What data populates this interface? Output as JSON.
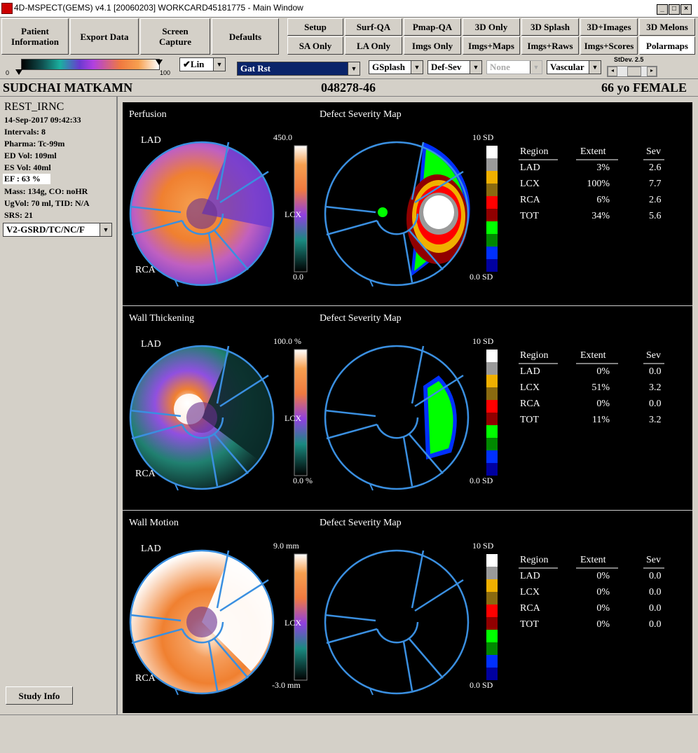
{
  "window": {
    "title": "4D-MSPECT(GEMS) v4.1 [20060203] WORKCARD45181775 - Main Window"
  },
  "toolbar": {
    "left_buttons": [
      "Patient\nInformation",
      "Export Data",
      "Screen\nCapture",
      "Defaults"
    ],
    "row1": [
      "Setup",
      "Surf-QA",
      "Pmap-QA",
      "3D Only",
      "3D Splash",
      "3D+Images",
      "3D Melons"
    ],
    "row2": [
      "SA Only",
      "LA Only",
      "Imgs Only",
      "Imgs+Maps",
      "Imgs+Raws",
      "Imgs+Scores",
      "Polarmaps"
    ],
    "active": "Polarmaps"
  },
  "controls": {
    "scale_min": "0",
    "scale_max": "100",
    "lin": "✔Lin",
    "dataset": "Gat Rst",
    "splash": "GSplash",
    "defsev": "Def-Sev",
    "none": "None",
    "vascular": "Vascular",
    "stdev_label": "StDev. 2.5"
  },
  "patient": {
    "name": "SUDCHAI MATKAMN",
    "id": "048278-46",
    "age_sex": "66 yo FEMALE"
  },
  "study": {
    "type": "REST_IRNC",
    "date": "14-Sep-2017 09:42:33",
    "intervals": "Intervals: 8",
    "pharma": "Pharma: Tc-99m",
    "ed": "ED Vol:   109ml",
    "es": "ES Vol:    40ml",
    "ef": "EF   : 63 %",
    "mass": "Mass: 134g, CO: noHR",
    "ugvol": "UgVol:    70 ml,   TID: N/A",
    "srs": "SRS: 21",
    "protocol": "V2-GSRD/TC/NC/F",
    "study_info": "Study Info"
  },
  "panels": [
    {
      "title": "Perfusion",
      "defect_title": "Defect Severity Map",
      "scale_max": "450.0",
      "scale_min": "0.0",
      "scale_mid": "LCX",
      "sd_max": "10 SD",
      "sd_min": "0.0 SD",
      "lad": "LAD",
      "rca": "RCA",
      "headers": [
        "Region",
        "Extent",
        "Sev"
      ],
      "rows": [
        [
          "LAD",
          "3%",
          "2.6"
        ],
        [
          "LCX",
          "100%",
          "7.7"
        ],
        [
          "RCA",
          "6%",
          "2.6"
        ],
        [
          "TOT",
          "34%",
          "5.6"
        ]
      ]
    },
    {
      "title": "Wall Thickening",
      "defect_title": "Defect Severity Map",
      "scale_max": "100.0 %",
      "scale_min": "0.0 %",
      "scale_mid": "LCX",
      "sd_max": "10 SD",
      "sd_min": "0.0 SD",
      "lad": "LAD",
      "rca": "RCA",
      "headers": [
        "Region",
        "Extent",
        "Sev"
      ],
      "rows": [
        [
          "LAD",
          "0%",
          "0.0"
        ],
        [
          "LCX",
          "51%",
          "3.2"
        ],
        [
          "RCA",
          "0%",
          "0.0"
        ],
        [
          "TOT",
          "11%",
          "3.2"
        ]
      ]
    },
    {
      "title": "Wall Motion",
      "defect_title": "Defect Severity Map",
      "scale_max": "9.0 mm",
      "scale_min": "-3.0 mm",
      "scale_mid": "LCX",
      "sd_max": "10 SD",
      "sd_min": "0.0 SD",
      "lad": "LAD",
      "rca": "RCA",
      "headers": [
        "Region",
        "Extent",
        "Sev"
      ],
      "rows": [
        [
          "LAD",
          "0%",
          "0.0"
        ],
        [
          "LCX",
          "0%",
          "0.0"
        ],
        [
          "RCA",
          "0%",
          "0.0"
        ],
        [
          "TOT",
          "0%",
          "0.0"
        ]
      ]
    }
  ],
  "colors": {
    "vessel": "#3a8fe0",
    "window_bg": "#d4d0c8"
  }
}
